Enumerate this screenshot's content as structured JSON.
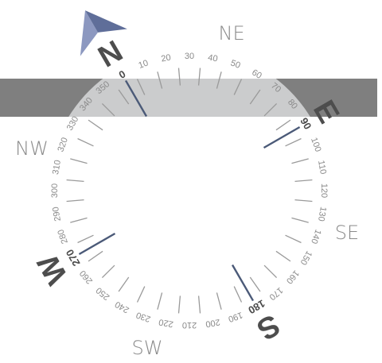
{
  "compass": {
    "heading_deg": -30,
    "tick_labels": [
      "0",
      "10",
      "20",
      "30",
      "40",
      "50",
      "60",
      "70",
      "80",
      "90",
      "100",
      "110",
      "120",
      "130",
      "140",
      "150",
      "160",
      "170",
      "180",
      "190",
      "200",
      "210",
      "220",
      "230",
      "240",
      "250",
      "260",
      "270",
      "280",
      "290",
      "300",
      "310",
      "320",
      "330",
      "340",
      "350"
    ],
    "cardinals": [
      {
        "bearing": 0,
        "label": "N"
      },
      {
        "bearing": 90,
        "label": "E"
      },
      {
        "bearing": 180,
        "label": "S"
      },
      {
        "bearing": 270,
        "label": "W"
      }
    ],
    "intercardinals": [
      {
        "bearing": 45,
        "label": "NE"
      },
      {
        "bearing": 135,
        "label": "SE"
      },
      {
        "bearing": 225,
        "label": "SW"
      },
      {
        "bearing": 315,
        "label": "NW"
      }
    ],
    "colors": {
      "band": "#7f7f7f",
      "band_overlay": "#cbcccd",
      "tick": "#9a9a9a",
      "label": "#8a8a8a",
      "bold_label": "#4a4a4a",
      "cardinal": "#4d4d4d",
      "needle": "#4b5a78",
      "arrow_light": "#8c98c0",
      "arrow_dark": "#5f6e99"
    }
  }
}
